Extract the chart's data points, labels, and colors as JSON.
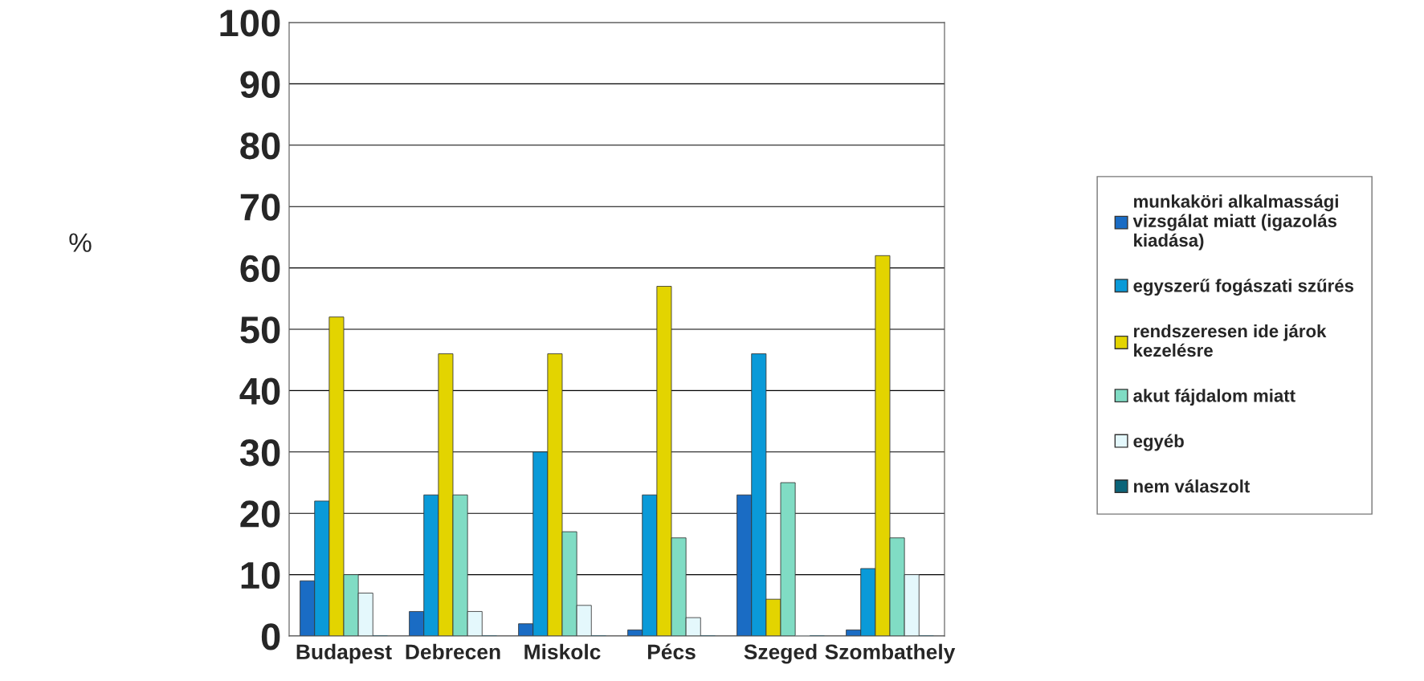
{
  "chart_data": {
    "type": "bar",
    "ylabel": "%",
    "categories": [
      "Budapest",
      "Debrecen",
      "Miskolc",
      "Pécs",
      "Szeged",
      "Szombathely"
    ],
    "series": [
      {
        "name": "munkaköri alkalmassági\nvizsgálat miatt (igazolás\nkiadása)",
        "color": "#1a6cc4",
        "values": [
          9,
          4,
          2,
          1,
          23,
          1
        ]
      },
      {
        "name": "egyszerű fogászati szűrés",
        "color": "#0a9ad8",
        "values": [
          22,
          23,
          30,
          23,
          46,
          11
        ]
      },
      {
        "name": "rendszeresen ide járok\nkezelésre",
        "color": "#e3d400",
        "values": [
          52,
          46,
          46,
          57,
          6,
          62
        ]
      },
      {
        "name": "akut fájdalom miatt",
        "color": "#80dcc4",
        "values": [
          10,
          23,
          17,
          16,
          25,
          16
        ]
      },
      {
        "name": "egyéb",
        "color": "#e4f8fc",
        "values": [
          7,
          4,
          5,
          3,
          0,
          10
        ]
      },
      {
        "name": "nem válaszolt",
        "color": "#0b6479",
        "values": [
          0,
          0,
          0,
          0,
          0,
          0
        ]
      }
    ],
    "ylim": [
      0,
      100
    ],
    "yticks": [
      0,
      10,
      20,
      30,
      40,
      50,
      60,
      70,
      80,
      90,
      100
    ],
    "grid": "y",
    "legend": "right"
  }
}
